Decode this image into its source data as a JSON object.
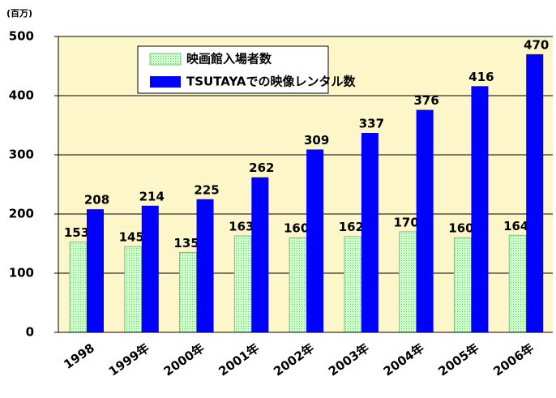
{
  "chart_data": {
    "type": "bar",
    "unit_label": "(百万)",
    "categories": [
      "1998",
      "1999年",
      "2000年",
      "2001年",
      "2002年",
      "2003年",
      "2004年",
      "2005年",
      "2006年"
    ],
    "series": [
      {
        "name": "映画館入場者数",
        "color": "#ccffcc",
        "values": [
          153,
          145,
          135,
          163,
          160,
          162,
          170,
          160,
          164
        ]
      },
      {
        "name": "TSUTAYAでの映像レンタル数",
        "color": "#0000ff",
        "values": [
          208,
          214,
          225,
          262,
          309,
          337,
          376,
          416,
          470
        ]
      }
    ],
    "ylim": [
      0,
      500
    ],
    "yticks": [
      0,
      100,
      200,
      300,
      400,
      500
    ],
    "grid": true,
    "legend": "top-left"
  }
}
